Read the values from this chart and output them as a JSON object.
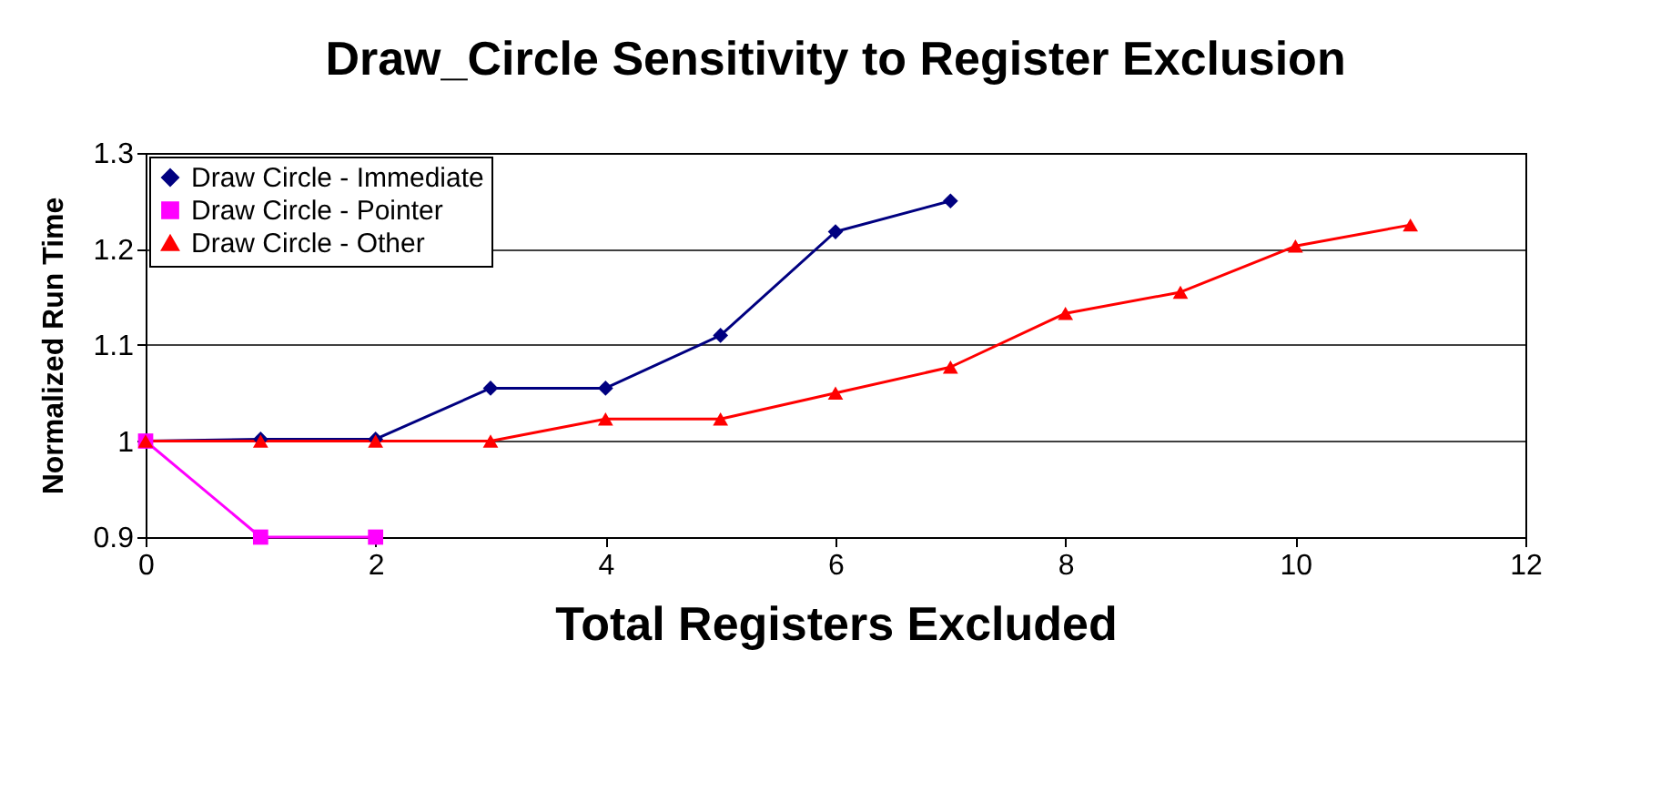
{
  "chart_data": {
    "type": "line",
    "title": "Draw_Circle Sensitivity to Register Exclusion",
    "xlabel": "Total Registers Excluded",
    "ylabel": "Normalized Run Time",
    "series": [
      {
        "name": "Draw Circle - Immediate",
        "color": "#000080",
        "marker": "diamond",
        "x": [
          0,
          1,
          2,
          3,
          4,
          5,
          6,
          7
        ],
        "values": [
          1.0,
          1.002,
          1.002,
          1.055,
          1.055,
          1.11,
          1.218,
          1.25
        ]
      },
      {
        "name": "Draw Circle - Pointer",
        "color": "#ff00ff",
        "marker": "square",
        "x": [
          0,
          1,
          2
        ],
        "values": [
          1.0,
          0.9,
          0.9
        ]
      },
      {
        "name": "Draw Circle - Other",
        "color": "#ff0000",
        "marker": "triangle",
        "x": [
          0,
          1,
          2,
          3,
          4,
          5,
          6,
          7,
          8,
          9,
          10,
          11
        ],
        "values": [
          1.0,
          1.0,
          1.0,
          1.0,
          1.023,
          1.023,
          1.05,
          1.077,
          1.133,
          1.155,
          1.203,
          1.225
        ]
      }
    ],
    "xlim": [
      0,
      12
    ],
    "xticks": [
      0,
      2,
      4,
      6,
      8,
      10,
      12
    ],
    "ylim": [
      0.9,
      1.3
    ],
    "yticks": [
      0.9,
      1,
      1.1,
      1.2,
      1.3
    ],
    "grid": "y",
    "legend": "top left",
    "line_style": "solid"
  }
}
